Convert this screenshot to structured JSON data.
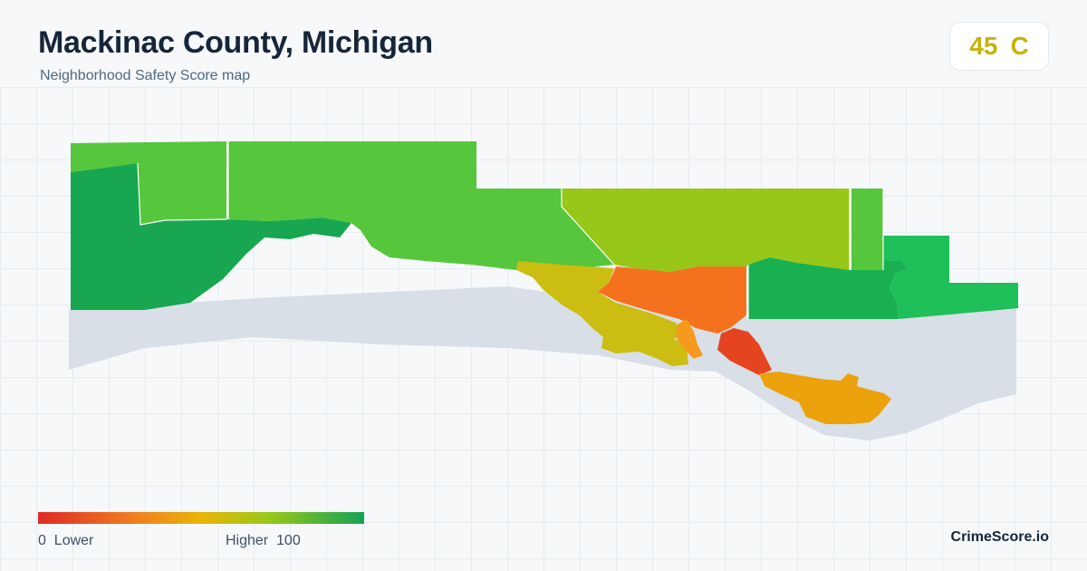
{
  "header": {
    "title": "Mackinac County, Michigan",
    "subtitle": "Neighborhood Safety Score map"
  },
  "score": {
    "value": "45",
    "grade": "C",
    "color": "#c9b20a"
  },
  "legend": {
    "min_value": "0",
    "min_label": "Lower",
    "max_label": "Higher",
    "max_value": "100",
    "colors": [
      "#dd2b26",
      "#f08020",
      "#e9b406",
      "#9cc817",
      "#14a355"
    ]
  },
  "brand": "CrimeScore.io",
  "map": {
    "water_color": "#d8dfe6",
    "regions": [
      {
        "id": "far-west",
        "color": "#18a650"
      },
      {
        "id": "northwest-upper",
        "color": "#56c63c"
      },
      {
        "id": "north-central",
        "color": "#56c63c"
      },
      {
        "id": "north-east-central",
        "color": "#97c718"
      },
      {
        "id": "east-strip",
        "color": "#56c63c"
      },
      {
        "id": "east",
        "color": "#1fbf5a"
      },
      {
        "id": "east-lower",
        "color": "#18b050"
      },
      {
        "id": "central-yellow",
        "color": "#cbbd12"
      },
      {
        "id": "central-orange",
        "color": "#f4711e"
      },
      {
        "id": "st-ignace",
        "color": "#e54421"
      },
      {
        "id": "mackinac-island-area",
        "color": "#eca20d"
      },
      {
        "id": "lakeside-orange",
        "color": "#f59a1c"
      }
    ]
  }
}
